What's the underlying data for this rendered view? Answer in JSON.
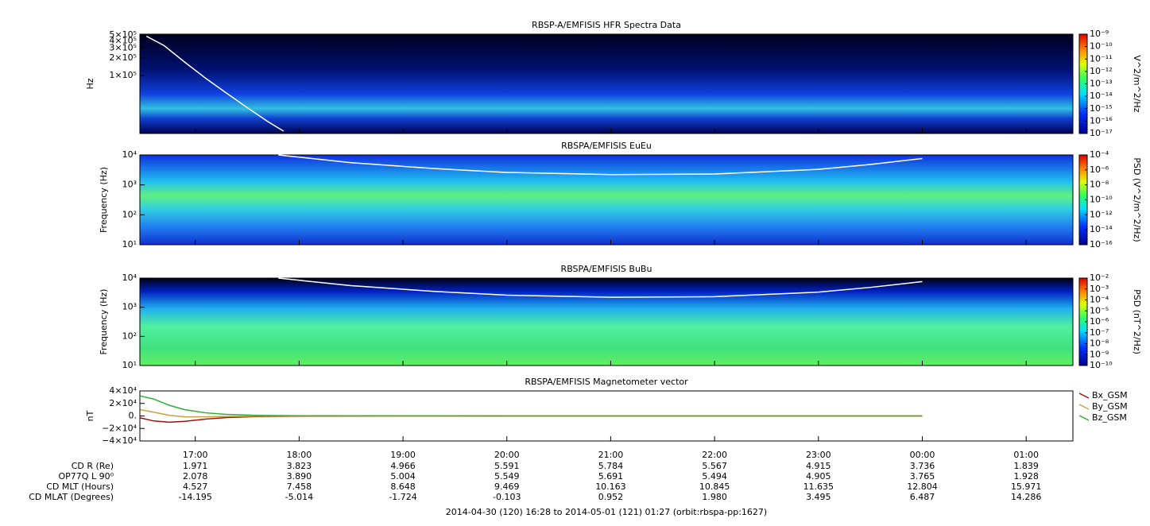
{
  "time_axis": {
    "xlim": [
      16.4667,
      25.45
    ],
    "xticks": [
      {
        "value": 17,
        "label": "17:00"
      },
      {
        "value": 18,
        "label": "18:00"
      },
      {
        "value": 19,
        "label": "19:00"
      },
      {
        "value": 20,
        "label": "20:00"
      },
      {
        "value": 21,
        "label": "21:00"
      },
      {
        "value": 22,
        "label": "22:00"
      },
      {
        "value": 23,
        "label": "23:00"
      },
      {
        "value": 24,
        "label": "00:00"
      },
      {
        "value": 25,
        "label": "01:00"
      }
    ]
  },
  "chart_data": [
    {
      "type": "spectrogram",
      "title": "RBSP-A/EMFISIS  HFR Spectra Data",
      "y_label": "Hz",
      "log_y": true,
      "ylim": [
        10000,
        520000
      ],
      "yticks": [
        {
          "value": 100000,
          "label": "1×10⁵"
        },
        {
          "value": 200000,
          "label": "2×10⁵"
        },
        {
          "value": 300000,
          "label": "3×10⁵"
        },
        {
          "value": 400000,
          "label": "4×10⁵"
        },
        {
          "value": 500000,
          "label": "5×10⁵"
        }
      ],
      "zlim": [
        1e-17,
        1e-09
      ],
      "colorbar_label": "V^2/m^2/Hz",
      "zticks": [
        {
          "value": 1e-09,
          "label": "10⁻⁹"
        },
        {
          "value": 1e-10,
          "label": "10⁻¹⁰"
        },
        {
          "value": 1e-11,
          "label": "10⁻¹¹"
        },
        {
          "value": 1e-12,
          "label": "10⁻¹²"
        },
        {
          "value": 1e-13,
          "label": "10⁻¹³"
        },
        {
          "value": 1e-14,
          "label": "10⁻¹⁴"
        },
        {
          "value": 1e-15,
          "label": "10⁻¹⁵"
        },
        {
          "value": 1e-16,
          "label": "10⁻¹⁶"
        },
        {
          "value": 1e-17,
          "label": "10⁻¹⁷"
        }
      ],
      "series": [
        {
          "color": "#ffffff",
          "x": [
            16.53,
            16.7,
            16.9,
            17.1,
            17.3,
            17.5,
            17.7,
            17.85
          ],
          "values": [
            480000,
            330000,
            170000,
            90000,
            50000,
            28000,
            16000,
            11000
          ]
        }
      ]
    },
    {
      "type": "spectrogram",
      "title": "RBSPA/EMFISIS  EuEu",
      "y_label": "Frequency (Hz)",
      "log_y": true,
      "ylim": [
        10,
        10000
      ],
      "yticks": [
        {
          "value": 10,
          "label": "10¹"
        },
        {
          "value": 100,
          "label": "10²"
        },
        {
          "value": 1000,
          "label": "10³"
        },
        {
          "value": 10000,
          "label": "10⁴"
        }
      ],
      "zlim": [
        1e-16,
        0.0001
      ],
      "colorbar_label": "PSD (V^2/m^2/Hz)",
      "zticks": [
        {
          "value": 0.0001,
          "label": "10⁻⁴"
        },
        {
          "value": 1e-06,
          "label": "10⁻⁶"
        },
        {
          "value": 1e-08,
          "label": "10⁻⁸"
        },
        {
          "value": 1e-10,
          "label": "10⁻¹⁰"
        },
        {
          "value": 1e-12,
          "label": "10⁻¹²"
        },
        {
          "value": 1e-14,
          "label": "10⁻¹⁴"
        },
        {
          "value": 1e-16,
          "label": "10⁻¹⁶"
        }
      ],
      "series": [
        {
          "color": "#ffffff",
          "x": [
            17.8,
            18.5,
            19.3,
            20,
            21,
            22,
            23,
            23.5,
            24
          ],
          "values": [
            10000,
            5500,
            3500,
            2600,
            2200,
            2300,
            3300,
            4800,
            7600
          ]
        }
      ]
    },
    {
      "type": "spectrogram",
      "title": "RBSPA/EMFISIS  BuBu",
      "y_label": "Frequency (Hz)",
      "log_y": true,
      "ylim": [
        10,
        10000
      ],
      "yticks": [
        {
          "value": 10,
          "label": "10¹"
        },
        {
          "value": 100,
          "label": "10²"
        },
        {
          "value": 1000,
          "label": "10³"
        },
        {
          "value": 10000,
          "label": "10⁴"
        }
      ],
      "zlim": [
        1e-10,
        0.01
      ],
      "colorbar_label": "PSD (nT^2/Hz)",
      "zticks": [
        {
          "value": 0.01,
          "label": "10⁻²"
        },
        {
          "value": 0.001,
          "label": "10⁻³"
        },
        {
          "value": 0.0001,
          "label": "10⁻⁴"
        },
        {
          "value": 1e-05,
          "label": "10⁻⁵"
        },
        {
          "value": 1e-06,
          "label": "10⁻⁶"
        },
        {
          "value": 1e-07,
          "label": "10⁻⁷"
        },
        {
          "value": 1e-08,
          "label": "10⁻⁸"
        },
        {
          "value": 1e-09,
          "label": "10⁻⁹"
        },
        {
          "value": 1e-10,
          "label": "10⁻¹⁰"
        }
      ],
      "series": [
        {
          "color": "#ffffff",
          "x": [
            17.8,
            18.5,
            19.3,
            20,
            21,
            22,
            23,
            23.5,
            24
          ],
          "values": [
            10000,
            5500,
            3500,
            2600,
            2200,
            2300,
            3300,
            4800,
            7600
          ]
        }
      ]
    },
    {
      "type": "line",
      "title": "RBSPA/EMFISIS  Magnetometer vector",
      "y_label": "nT",
      "ylim": [
        -40000,
        40000
      ],
      "yticks": [
        {
          "value": 40000,
          "label": "4×10⁴"
        },
        {
          "value": 20000,
          "label": "2×10⁴"
        },
        {
          "value": 0,
          "label": "0."
        },
        {
          "value": -20000,
          "label": "−2×10⁴"
        },
        {
          "value": -40000,
          "label": "−4×10⁴"
        }
      ],
      "x": [
        16.47,
        16.6,
        16.75,
        16.9,
        17.1,
        17.3,
        17.6,
        18,
        19,
        20,
        21,
        22,
        23,
        24
      ],
      "series": [
        {
          "name": "Bx_GSM",
          "color": "#a01010",
          "values": [
            -3000,
            -8000,
            -10000,
            -8500,
            -5000,
            -2500,
            -1000,
            -300,
            0,
            0,
            0,
            0,
            0,
            0
          ]
        },
        {
          "name": "By_GSM",
          "color": "#c8a040",
          "values": [
            10000,
            6000,
            1000,
            -1500,
            -1500,
            -800,
            -300,
            0,
            0,
            0,
            0,
            0,
            0,
            0
          ]
        },
        {
          "name": "Bz_GSM",
          "color": "#30b030",
          "values": [
            32000,
            27000,
            17000,
            10000,
            5000,
            2500,
            1000,
            300,
            100,
            0,
            0,
            0,
            0,
            0
          ]
        }
      ]
    }
  ],
  "ephemeris": [
    {
      "label": "CD R (Re)",
      "values": [
        "1.971",
        "3.823",
        "4.966",
        "5.591",
        "5.784",
        "5.567",
        "4.915",
        "3.736",
        "1.839"
      ]
    },
    {
      "label": "OP77Q L 90⁰",
      "values": [
        "2.078",
        "3.890",
        "5.004",
        "5.549",
        "5.691",
        "5.494",
        "4.905",
        "3.765",
        "1.928"
      ]
    },
    {
      "label": "CD MLT (Hours)",
      "values": [
        "4.527",
        "7.458",
        "8.648",
        "9.469",
        "10.163",
        "10.845",
        "11.635",
        "12.804",
        "15.971"
      ]
    },
    {
      "label": "CD MLAT (Degrees)",
      "values": [
        "-14.195",
        "-5.014",
        "-1.724",
        "-0.103",
        "0.952",
        "1.980",
        "3.495",
        "6.487",
        "14.286"
      ]
    }
  ],
  "footer": "2014-04-30 (120) 16:28 to 2014-05-01 (121) 01:27 (orbit:rbspa-pp:1627)"
}
